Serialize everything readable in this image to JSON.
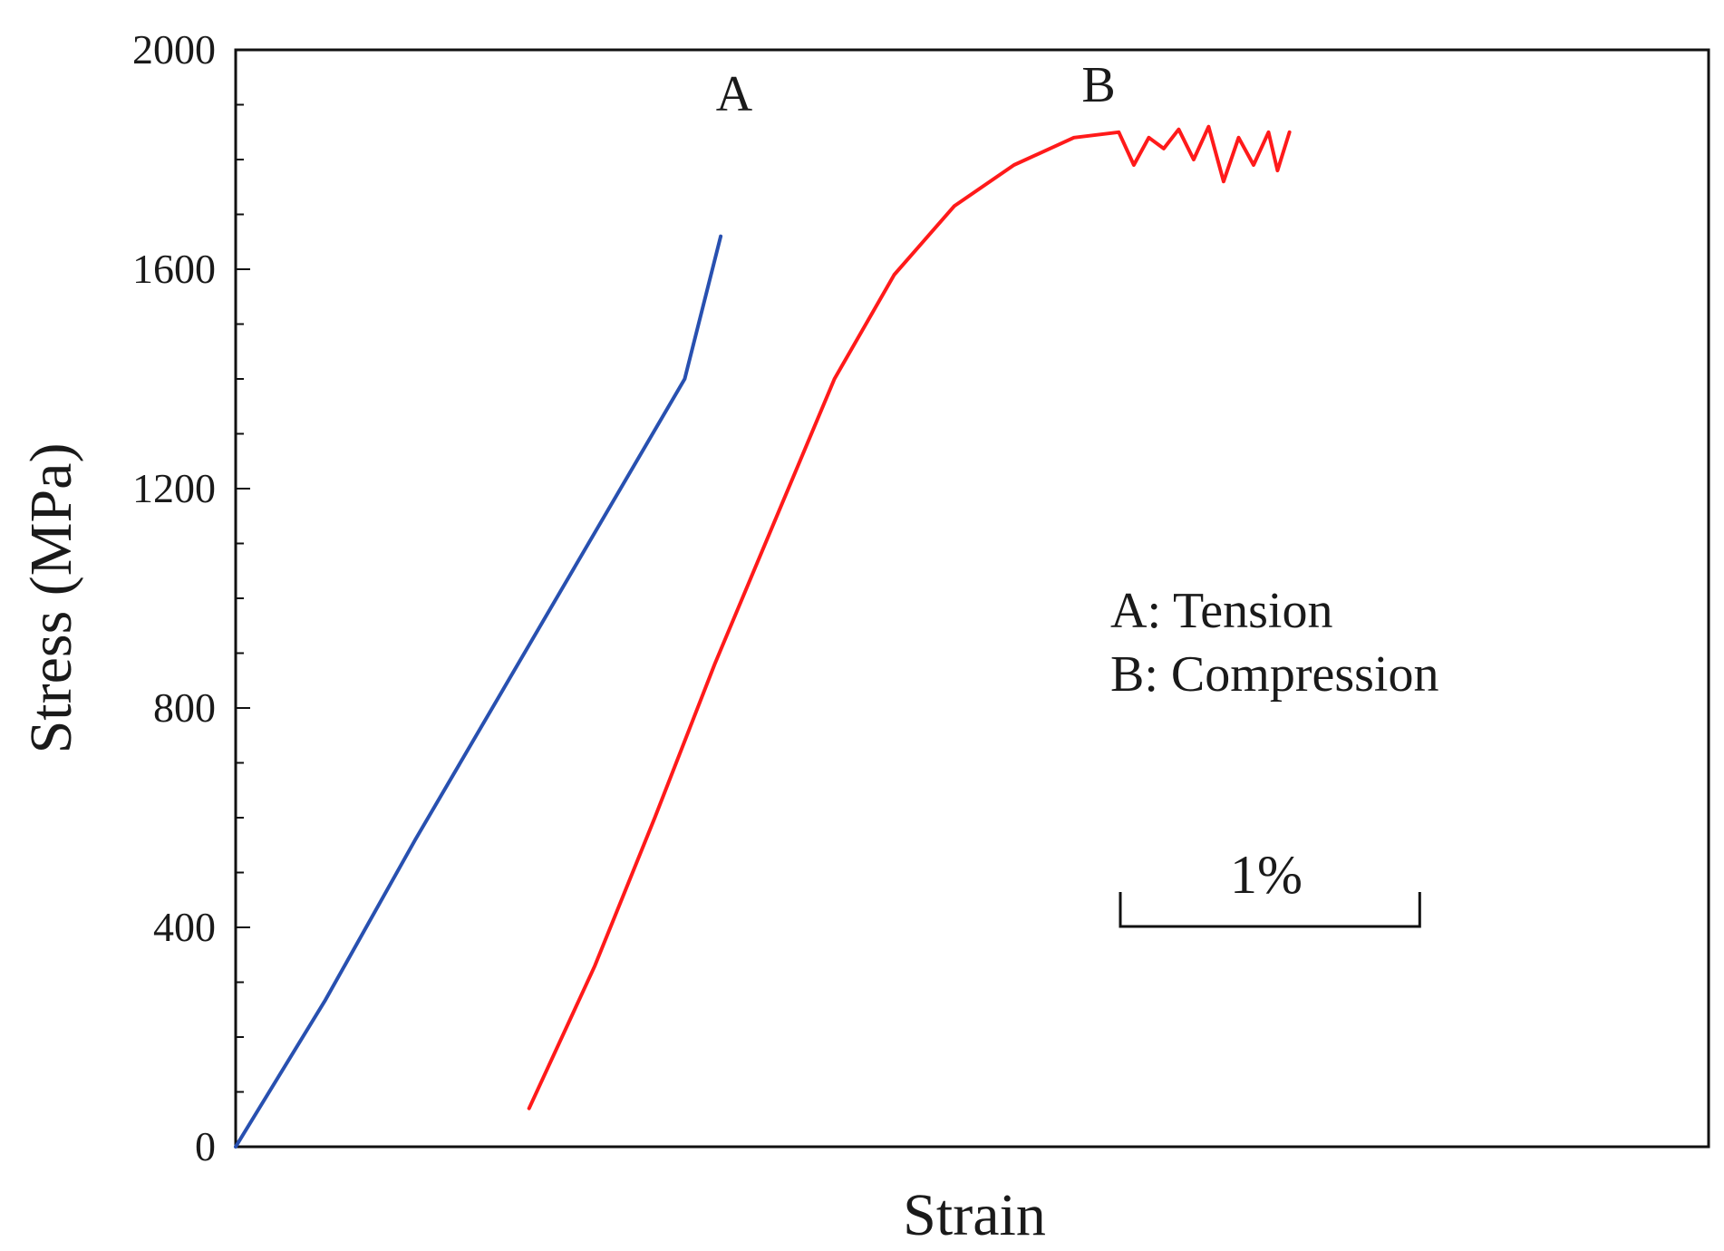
{
  "chart_data": {
    "type": "line",
    "title": "",
    "xlabel": "Strain",
    "ylabel": "Stress (MPa)",
    "xlim": [
      0,
      4.92
    ],
    "ylim": [
      0,
      2000
    ],
    "yticks": [
      0,
      400,
      800,
      1200,
      1600,
      2000
    ],
    "ytick_labels": [
      "0",
      "400",
      "800",
      "1200",
      "1600",
      "2000"
    ],
    "x_tick_labels_shown": false,
    "grid": false,
    "series": [
      {
        "name": "A",
        "label": "A",
        "color": "#2850b0",
        "points": [
          [
            0,
            0
          ],
          [
            0.3,
            268
          ],
          [
            0.6,
            560
          ],
          [
            0.9,
            840
          ],
          [
            1.2,
            1120
          ],
          [
            1.5,
            1400
          ],
          [
            1.62,
            1660
          ]
        ]
      },
      {
        "name": "B",
        "label": "B",
        "color": "#ff1a1a",
        "points": [
          [
            0.98,
            70
          ],
          [
            1.2,
            330
          ],
          [
            1.4,
            600
          ],
          [
            1.6,
            880
          ],
          [
            1.8,
            1140
          ],
          [
            2.0,
            1400
          ],
          [
            2.2,
            1590
          ],
          [
            2.4,
            1715
          ],
          [
            2.6,
            1790
          ],
          [
            2.8,
            1840
          ],
          [
            2.95,
            1850
          ],
          [
            3.0,
            1790
          ],
          [
            3.05,
            1840
          ],
          [
            3.1,
            1820
          ],
          [
            3.15,
            1855
          ],
          [
            3.2,
            1800
          ],
          [
            3.25,
            1860
          ],
          [
            3.3,
            1760
          ],
          [
            3.35,
            1840
          ],
          [
            3.4,
            1790
          ],
          [
            3.45,
            1850
          ],
          [
            3.48,
            1780
          ],
          [
            3.52,
            1850
          ]
        ]
      }
    ],
    "legend": {
      "placement": "center-right",
      "entries": [
        "A: Tension",
        "B: Compression"
      ]
    },
    "scale_bar": {
      "label": "1%",
      "strain_length": 1.0
    }
  }
}
